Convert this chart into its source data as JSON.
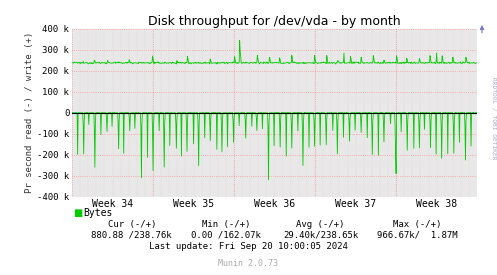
{
  "title": "Disk throughput for /dev/vda - by month",
  "ylabel": "Pr second read (-) / write (+)",
  "xlabel_ticks": [
    "Week 34",
    "Week 35",
    "Week 36",
    "Week 37",
    "Week 38"
  ],
  "ylim": [
    -400000,
    400000
  ],
  "yticks": [
    -400000,
    -300000,
    -200000,
    -100000,
    0,
    100000,
    200000,
    300000,
    400000
  ],
  "ytick_labels": [
    "-400 k",
    "-300 k",
    "-200 k",
    "-100 k",
    "0",
    "100 k",
    "200 k",
    "300 k",
    "400 k"
  ],
  "background_color": "#ffffff",
  "plot_bg_color": "#e8e8e8",
  "grid_color": "#ff8080",
  "vgrid_color": "#ff8080",
  "line_color": "#00cc00",
  "zero_line_color": "#000000",
  "legend_label": "Bytes",
  "legend_color": "#00cc00",
  "legend_box_color": "#00cc00",
  "footer_cur": "Cur (-/+)",
  "footer_min": "Min (-/+)",
  "footer_avg": "Avg (-/+)",
  "footer_max": "Max (-/+)",
  "footer_cur_val": "880.88 /238.76k",
  "footer_min_val": "0.00 /162.07k",
  "footer_avg_val": "29.40k/238.65k",
  "footer_max_val": "966.67k/  1.87M",
  "footer_update": "Last update: Fri Sep 20 10:00:05 2024",
  "munin_version": "Munin 2.0.73",
  "right_label": "RRDTOOL / TOBI OETIKER",
  "n_points": 800,
  "base_write": 238000,
  "noise_write": 2000,
  "base_read": 0,
  "noise_read": 500
}
